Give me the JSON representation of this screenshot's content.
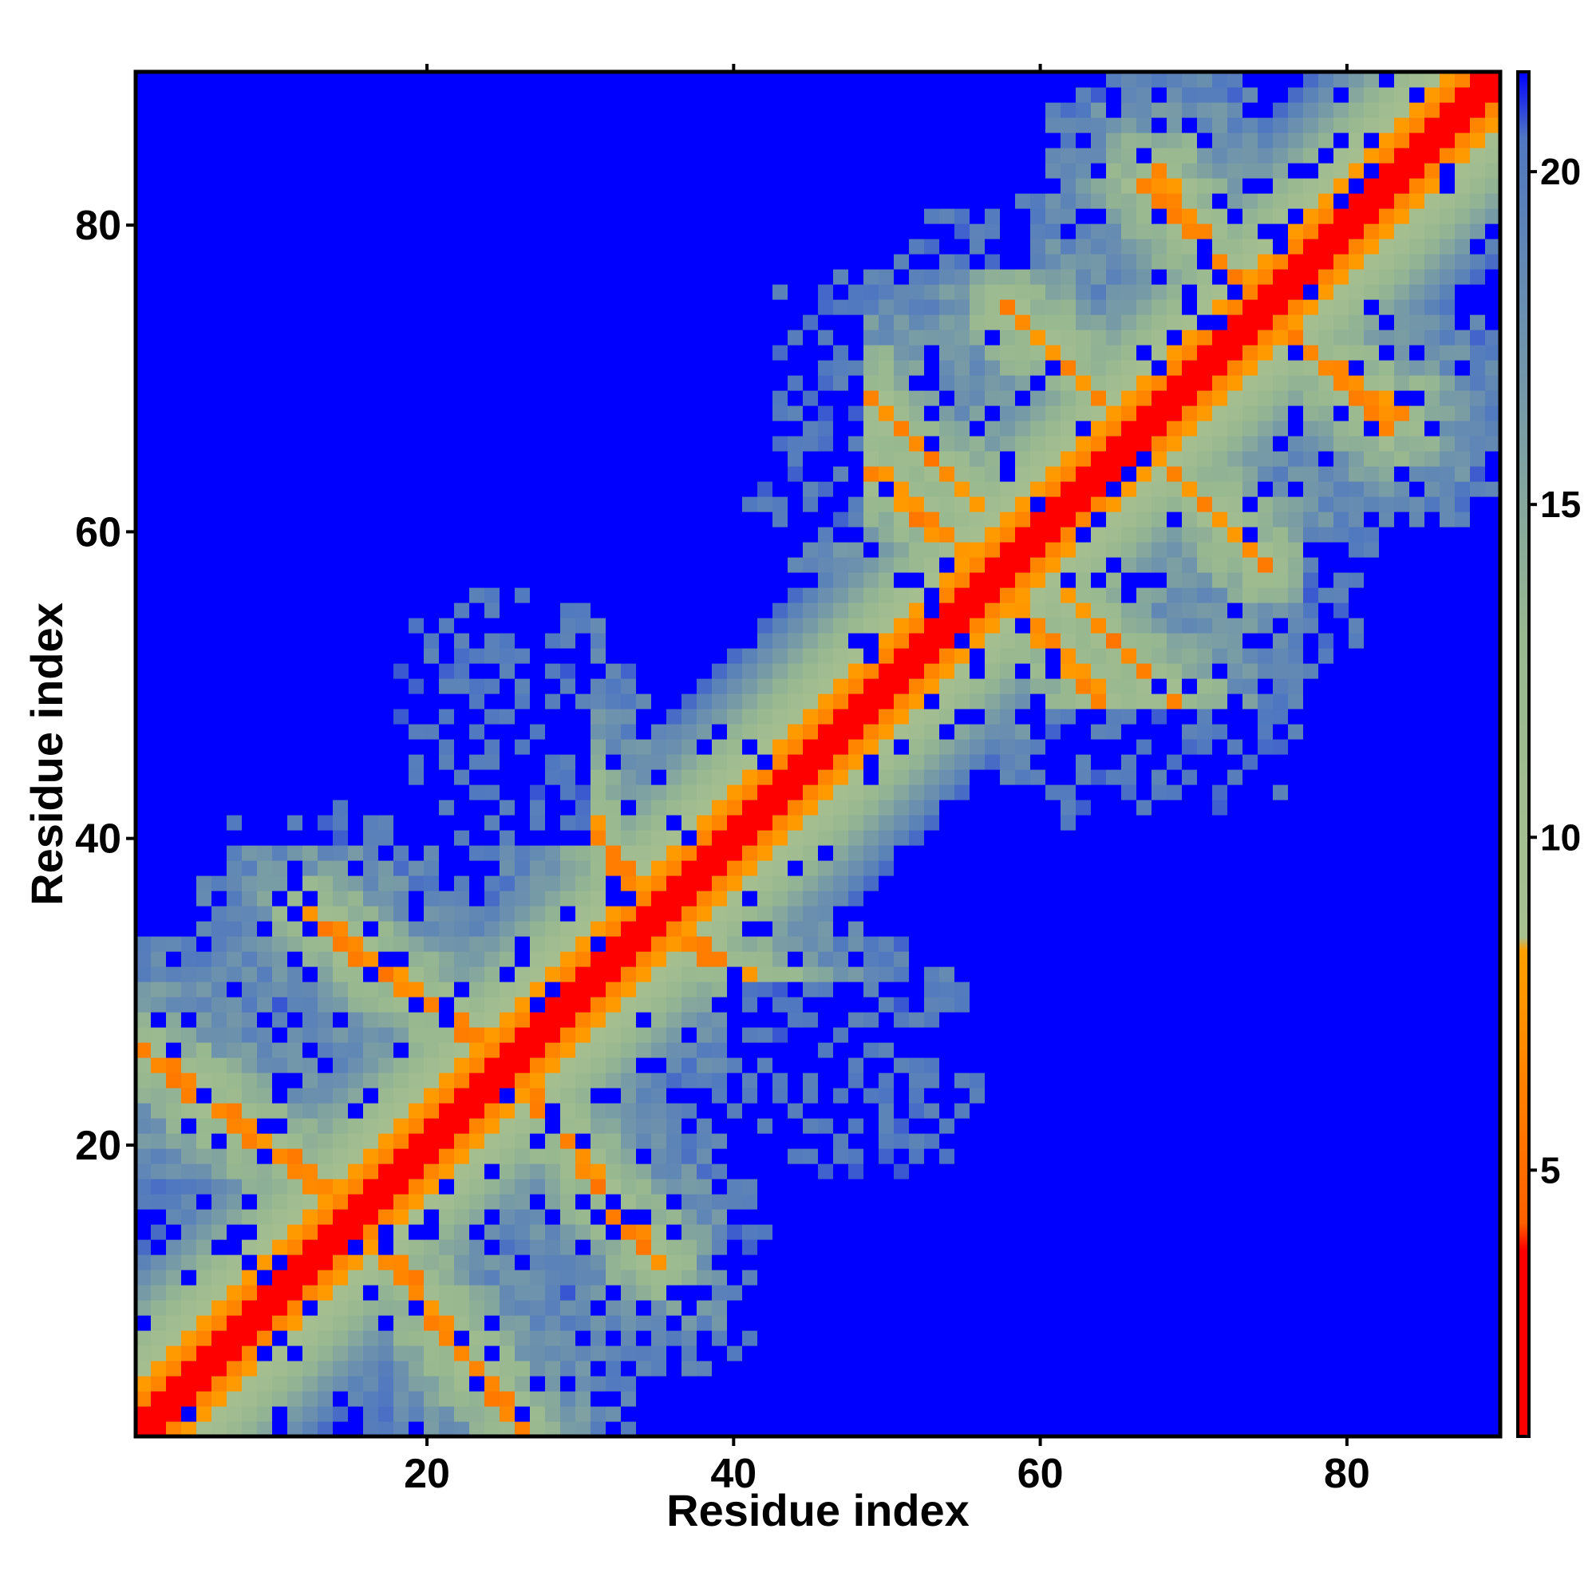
{
  "chart_data": {
    "type": "heatmap",
    "title": "",
    "xlabel": "Residue index",
    "ylabel": "Residue index",
    "n_residues": 90,
    "xlim": [
      1,
      90
    ],
    "ylim": [
      1,
      90
    ],
    "x_ticks": [
      20,
      40,
      60,
      80
    ],
    "y_ticks": [
      20,
      40,
      60,
      80
    ],
    "colorbar": {
      "ticks": [
        5,
        10,
        15,
        20
      ],
      "range": [
        1,
        21.5
      ],
      "stops": [
        {
          "value": 1,
          "color": "#ff0000"
        },
        {
          "value": 3.8,
          "color": "#ff0000"
        },
        {
          "value": 4.2,
          "color": "#ff6000"
        },
        {
          "value": 8.3,
          "color": "#ffa000"
        },
        {
          "value": 8.5,
          "color": "#a8c090"
        },
        {
          "value": 13,
          "color": "#98b890"
        },
        {
          "value": 20.5,
          "color": "#5078c0"
        },
        {
          "value": 21.5,
          "color": "#0000ff"
        }
      ]
    },
    "colors": {
      "contact": "#ff0000",
      "near": "#ffa500",
      "mid": "#a0bc8c",
      "far": "#5a82c0",
      "max": "#0000ff"
    },
    "structure": {
      "model": "pairwise residue distance map, symmetric about the diagonal",
      "cap_value": 21,
      "contact_bands": [
        {
          "from": [
            14,
            16
          ],
          "to": [
            1,
            26
          ],
          "note": "antiparallel strand pair"
        },
        {
          "from": [
            26,
            24
          ],
          "to": [
            35,
            12
          ],
          "note": "antiparallel strand pair"
        },
        {
          "from": [
            33,
            36
          ],
          "to": [
            49,
            25
          ],
          "note": "antiparallel strand pair"
        },
        {
          "from": [
            62,
            56
          ],
          "to": [
            70,
            48
          ],
          "note": "antiparallel strand pair"
        },
        {
          "from": [
            48,
            65
          ],
          "to": [
            55,
            59
          ],
          "note": "antiparallel strand pair"
        },
        {
          "from": [
            67,
            66
          ],
          "to": [
            75,
            58
          ],
          "note": "antiparallel strand pair"
        },
        {
          "from": [
            68,
            84
          ],
          "to": [
            73,
            76
          ],
          "note": "antiparallel strand pair"
        },
        {
          "from": [
            76,
            74
          ],
          "to": [
            83,
            67
          ],
          "note": "antiparallel strand pair"
        }
      ],
      "far_blocks": [
        [
          1,
          13,
          60,
          90
        ],
        [
          20,
          40,
          60,
          90
        ],
        [
          40,
          60,
          1,
          30
        ],
        [
          60,
          90,
          1,
          20
        ],
        [
          60,
          90,
          28,
          48
        ],
        [
          78,
          90,
          48,
          60
        ],
        [
          14,
          20,
          78,
          90
        ],
        [
          42,
          56,
          78,
          90
        ]
      ]
    }
  }
}
